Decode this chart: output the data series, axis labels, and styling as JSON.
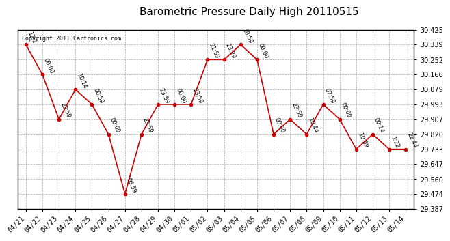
{
  "title": "Barometric Pressure Daily High 20110515",
  "copyright": "Copyright 2011 Cartronics.com",
  "x_labels": [
    "04/21",
    "04/22",
    "04/23",
    "04/24",
    "04/25",
    "04/26",
    "04/27",
    "04/28",
    "04/29",
    "04/30",
    "05/01",
    "05/02",
    "05/03",
    "05/04",
    "05/05",
    "05/06",
    "05/07",
    "05/08",
    "05/09",
    "05/10",
    "05/11",
    "05/12",
    "05/13",
    "05/14"
  ],
  "y_values": [
    30.339,
    30.166,
    29.907,
    30.079,
    29.993,
    29.82,
    29.474,
    29.82,
    29.993,
    29.993,
    29.993,
    30.252,
    30.252,
    30.339,
    30.252,
    29.82,
    29.907,
    29.82,
    29.993,
    29.907,
    29.733,
    29.82,
    29.733,
    29.733
  ],
  "point_labels": [
    "12:1",
    "00:00",
    "23:59",
    "10:14",
    "00:59",
    "00:00",
    "06:59",
    "23:59",
    "23:59",
    "00:00",
    "23:59",
    "21:59",
    "23:29",
    "10:59",
    "00:00",
    "00:00",
    "23:59",
    "10:44",
    "07:59",
    "00:00",
    "10:59",
    "00:14",
    "1:22",
    "22:44"
  ],
  "ylim_min": 29.387,
  "ylim_max": 30.425,
  "yticks": [
    29.387,
    29.474,
    29.56,
    29.647,
    29.733,
    29.82,
    29.907,
    29.993,
    30.079,
    30.166,
    30.252,
    30.339,
    30.425
  ],
  "line_color": "#cc0000",
  "marker_color": "#cc0000",
  "background_color": "#ffffff",
  "grid_color": "#aaaaaa",
  "title_fontsize": 11,
  "tick_fontsize": 7,
  "annotation_fontsize": 6
}
